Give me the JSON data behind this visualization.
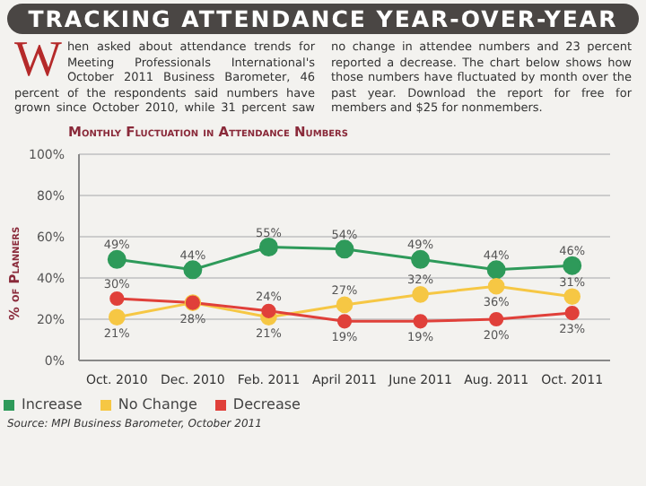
{
  "chart_data": {
    "type": "line",
    "title": "TRACKING ATTENDANCE YEAR-OVER-YEAR",
    "subtitle": "Monthly Fluctuation in Attendance Numbers",
    "ylabel": "% of Planners",
    "annotations": [
      "When asked about attendance trends for Meeting Professionals International's October 2011 Business Barometer, 46 percent of the respondents said numbers have grown since October 2010, while 31 percent saw no change in attendee numbers and 23 percent reported a decrease. The chart below shows how those numbers have fluctuated by month over the past year. Download the report for free for members and $25 for nonmembers.",
      "Source: MPI Business Barometer, October 2011"
    ],
    "categories": [
      "Oct. 2010",
      "Dec. 2010",
      "Feb. 2011",
      "April 2011",
      "June 2011",
      "Aug. 2011",
      "Oct. 2011"
    ],
    "series": [
      {
        "name": "Increase",
        "color": "#2e9a5a",
        "values": [
          49,
          44,
          55,
          54,
          49,
          44,
          46
        ],
        "value_labels": [
          "49%",
          "44%",
          "55%",
          "54%",
          "49%",
          "44%",
          "46%"
        ]
      },
      {
        "name": "No Change",
        "color": "#f6c744",
        "values": [
          21,
          28,
          21,
          27,
          32,
          36,
          31
        ],
        "value_labels": [
          "21%",
          null,
          "21%",
          "27%",
          "32%",
          "36%",
          "31%"
        ]
      },
      {
        "name": "Decrease",
        "color": "#e0403a",
        "values": [
          30,
          28,
          24,
          19,
          19,
          20,
          23
        ],
        "value_labels": [
          "30%",
          "28%",
          "24%",
          "19%",
          "19%",
          "20%",
          "23%"
        ]
      }
    ],
    "ylim": [
      0,
      100
    ],
    "yticks": [
      {
        "value": 0,
        "label": "0%"
      },
      {
        "value": 20,
        "label": "20%"
      },
      {
        "value": 40,
        "label": "40%"
      },
      {
        "value": 60,
        "label": "60%"
      },
      {
        "value": 80,
        "label": "80%"
      },
      {
        "value": 100,
        "label": "100%"
      }
    ],
    "grid": true,
    "legend": "bottom left",
    "marker": "circle",
    "line_style": "solid"
  }
}
